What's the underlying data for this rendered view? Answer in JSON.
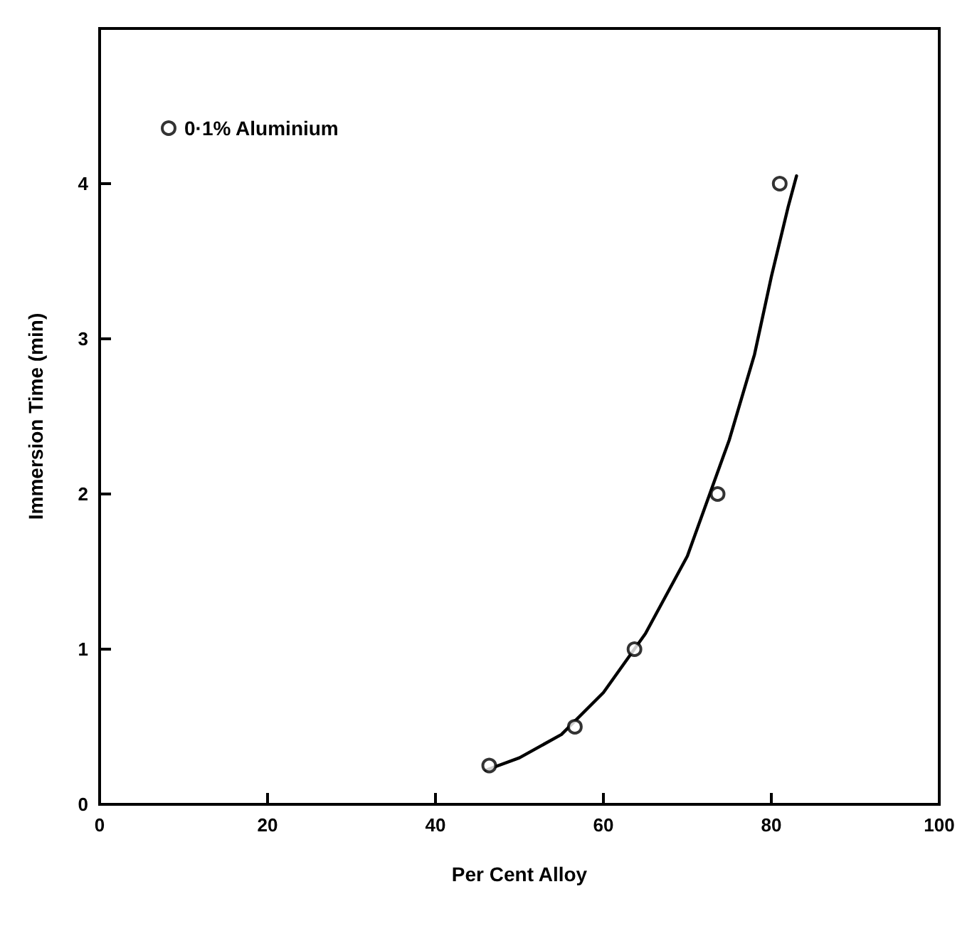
{
  "chart_data": {
    "type": "scatter",
    "xlabel": "Per Cent Alloy",
    "ylabel": "Immersion Time (min)",
    "xlim": [
      0,
      100
    ],
    "xticks": [
      0,
      20,
      40,
      60,
      80,
      100
    ],
    "ylim": [
      0,
      5
    ],
    "yticks": [
      0,
      1,
      2,
      3,
      4
    ],
    "grid": false,
    "legend": "top left",
    "series": [
      {
        "name": "0·1% Aluminium",
        "color": "#000000",
        "marker": "circle",
        "x": [
          46.4,
          56.6,
          63.7,
          73.6,
          81.0
        ],
        "values": [
          0.25,
          0.5,
          1.0,
          2.0,
          4.0
        ]
      },
      {
        "type": "line",
        "color": "#000000",
        "line_style": "solid",
        "x": [
          46,
          50,
          55,
          60,
          65,
          70,
          75,
          78,
          80,
          82,
          83
        ],
        "values": [
          0.22,
          0.3,
          0.45,
          0.72,
          1.1,
          1.6,
          2.35,
          2.9,
          3.4,
          3.85,
          4.05
        ]
      }
    ]
  }
}
